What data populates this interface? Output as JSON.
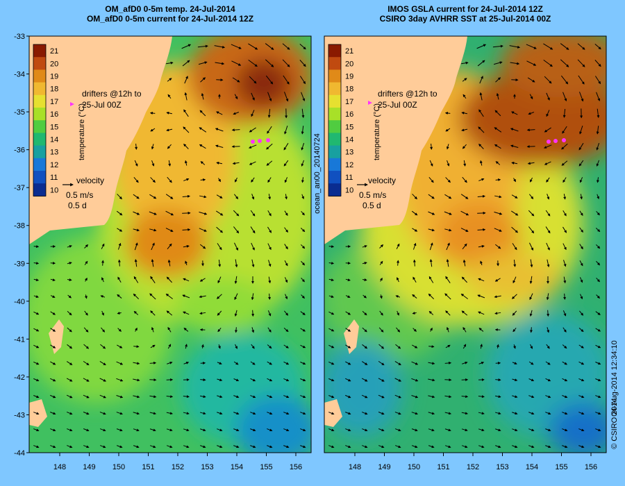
{
  "left_panel": {
    "title_line1": "OM_afD0 0-5m temp. 24-Jul-2014",
    "title_line2": "OM_afD0 0-5m current for 24-Jul-2014 12Z",
    "drifters_line1": "drifters @12h to",
    "drifters_line2": "25-Jul 00Z",
    "velocity_label": "velocity",
    "velocity_speed": "0.5 m/s",
    "velocity_time": "0.5 d"
  },
  "right_panel": {
    "title_line1": "IMOS GSLA current for 24-Jul-2014 12Z",
    "title_line2": "CSIRO 3day AVHRR SST at 25-Jul-2014 00Z",
    "drifters_line1": "drifters @12h to",
    "drifters_line2": "25-Jul 00Z",
    "velocity_label": "velocity",
    "velocity_speed": "0.5 m/s",
    "velocity_time": "0.5 d",
    "side_label": "ocean_an00_20140724"
  },
  "colorbar": {
    "label": "temperature (°C)",
    "ticks": [
      "21",
      "20",
      "19",
      "18",
      "17",
      "16",
      "15",
      "14",
      "13",
      "12",
      "11",
      "10"
    ],
    "colors": [
      "#8a1a00",
      "#c04a10",
      "#e08a18",
      "#f0b830",
      "#e6e030",
      "#a8e028",
      "#50cc40",
      "#20b870",
      "#18a0a0",
      "#1878d8",
      "#1050c0",
      "#0a2c90"
    ]
  },
  "axes": {
    "lon_ticks": [
      "148",
      "149",
      "150",
      "151",
      "152",
      "153",
      "154",
      "155",
      "156"
    ],
    "lat_ticks": [
      "-33",
      "-34",
      "-35",
      "-36",
      "-37",
      "-38",
      "-39",
      "-40",
      "-41",
      "-42",
      "-43",
      "-44"
    ]
  },
  "credit": {
    "date": "04-Aug-2014 12:34:10",
    "org": "© CSIRO 2014"
  },
  "colors": {
    "background": "#7fc7ff",
    "land": "#ffcc99",
    "drifter": "#ff33ff"
  }
}
